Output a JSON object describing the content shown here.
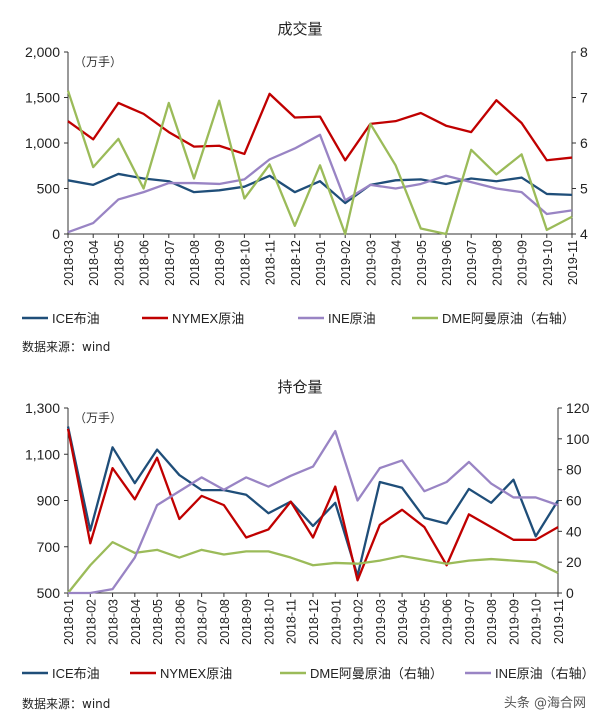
{
  "chart_data": [
    {
      "type": "line",
      "title": "成交量",
      "unit_label": "（万手）",
      "source": "数据来源：wind",
      "categories": [
        "2018-03",
        "2018-04",
        "2018-05",
        "2018-06",
        "2018-07",
        "2018-08",
        "2018-09",
        "2018-10",
        "2018-11",
        "2018-12",
        "2019-01",
        "2019-02",
        "2019-03",
        "2019-04",
        "2019-05",
        "2019-06",
        "2019-07",
        "2019-08",
        "2019-09",
        "2019-10",
        "2019-11"
      ],
      "ylim": [
        0,
        2000
      ],
      "yticks": [
        "0",
        "500",
        "1,000",
        "1,500",
        "2,000"
      ],
      "y2lim": [
        4,
        8
      ],
      "y2ticks": [
        "4",
        "5",
        "6",
        "7",
        "8"
      ],
      "legend_position": "bottom",
      "series": [
        {
          "name": "ICE布油",
          "color": "#1f4e79",
          "axis": "left",
          "values": [
            590,
            540,
            660,
            610,
            580,
            460,
            480,
            520,
            640,
            460,
            580,
            340,
            540,
            590,
            600,
            550,
            610,
            580,
            620,
            440,
            430
          ]
        },
        {
          "name": "NYMEX原油",
          "color": "#c00000",
          "axis": "left",
          "values": [
            1240,
            1040,
            1440,
            1320,
            1120,
            960,
            970,
            880,
            1540,
            1280,
            1290,
            810,
            1210,
            1240,
            1330,
            1190,
            1120,
            1470,
            1220,
            810,
            840
          ]
        },
        {
          "name": "INE原油",
          "color": "#9984c4",
          "axis": "left",
          "values": [
            20,
            120,
            380,
            460,
            560,
            560,
            550,
            600,
            820,
            940,
            1090,
            370,
            540,
            500,
            550,
            640,
            570,
            500,
            460,
            220,
            260
          ]
        },
        {
          "name": "DME阿曼原油（右轴）",
          "color": "#9bbb59",
          "axis": "right",
          "values": [
            7.15,
            5.47,
            6.09,
            5.0,
            6.88,
            5.22,
            6.93,
            4.78,
            5.53,
            4.18,
            5.51,
            4.0,
            6.42,
            5.51,
            4.12,
            4.0,
            5.85,
            5.31,
            5.75,
            4.09,
            4.38
          ]
        }
      ]
    },
    {
      "type": "line",
      "title": "持仓量",
      "unit_label": "（万手）",
      "source": "数据来源：wind",
      "categories": [
        "2018-01",
        "2018-02",
        "2018-03",
        "2018-04",
        "2018-05",
        "2018-06",
        "2018-07",
        "2018-08",
        "2018-09",
        "2018-10",
        "2018-11",
        "2018-12",
        "2019-01",
        "2019-02",
        "2019-03",
        "2019-04",
        "2019-05",
        "2019-06",
        "2019-07",
        "2019-08",
        "2019-09",
        "2019-10",
        "2019-11"
      ],
      "ylim": [
        500,
        1300
      ],
      "yticks": [
        "500",
        "700",
        "900",
        "1,100",
        "1,300"
      ],
      "y2lim": [
        0,
        120
      ],
      "y2ticks": [
        "0",
        "20",
        "40",
        "60",
        "80",
        "100",
        "120"
      ],
      "legend_position": "bottom",
      "series": [
        {
          "name": "ICE布油",
          "color": "#1f4e79",
          "axis": "left",
          "values": [
            1220,
            770,
            1130,
            975,
            1120,
            1010,
            945,
            945,
            925,
            845,
            895,
            790,
            890,
            575,
            980,
            955,
            825,
            800,
            950,
            890,
            990,
            745,
            900
          ]
        },
        {
          "name": "NYMEX原油",
          "color": "#c00000",
          "axis": "left",
          "values": [
            1210,
            715,
            1040,
            905,
            1085,
            820,
            920,
            880,
            740,
            775,
            895,
            740,
            960,
            555,
            795,
            860,
            785,
            620,
            840,
            785,
            730,
            730,
            785
          ]
        },
        {
          "name": "DME阿曼原油（右轴）",
          "color": "#9bbb59",
          "axis": "right",
          "values": [
            0,
            18,
            33,
            26,
            28,
            23,
            28,
            25,
            27,
            27,
            23,
            18,
            19.5,
            19,
            21,
            24,
            21.5,
            19,
            21,
            22,
            21,
            20,
            13
          ]
        },
        {
          "name": "INE原油（右轴）",
          "color": "#9984c4",
          "axis": "right",
          "values": [
            0,
            0,
            2.5,
            23,
            57,
            66,
            75,
            67,
            75,
            69,
            76,
            82,
            105,
            60,
            81,
            86,
            66,
            72,
            85,
            71,
            62,
            62,
            57
          ]
        }
      ]
    }
  ],
  "watermark": "头条 @海合网"
}
